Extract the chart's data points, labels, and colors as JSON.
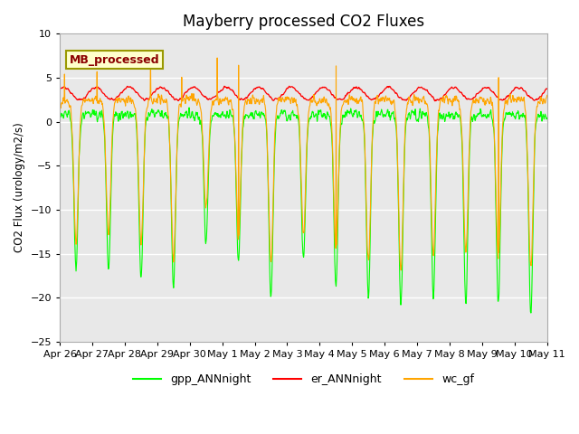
{
  "title": "Mayberry processed CO2 Fluxes",
  "ylabel": "CO2 Flux (urology/m2/s)",
  "ylim": [
    -25,
    10
  ],
  "yticks": [
    -25,
    -20,
    -15,
    -10,
    -5,
    0,
    5,
    10
  ],
  "legend_label": "MB_processed",
  "legend_text_color": "#8B0000",
  "legend_box_facecolor": "#FFFFCC",
  "legend_box_edgecolor": "#999900",
  "plot_bg_color": "#E8E8E8",
  "line_colors": {
    "gpp": "#00FF00",
    "er": "#FF0000",
    "wc": "#FFA500"
  },
  "legend_entries": [
    {
      "label": "gpp_ANNnight",
      "color": "#00FF00"
    },
    {
      "label": "er_ANNnight",
      "color": "#FF0000"
    },
    {
      "label": "wc_gf",
      "color": "#FFA500"
    }
  ],
  "date_labels": [
    "Apr 26",
    "Apr 27",
    "Apr 28",
    "Apr 29",
    "Apr 30",
    "May 1",
    "May 2",
    "May 3",
    "May 4",
    "May 5",
    "May 6",
    "May 7",
    "May 8",
    "May 9",
    "May 10",
    "May 11"
  ],
  "n_days": 15,
  "points_per_day": 96,
  "seed": 42
}
